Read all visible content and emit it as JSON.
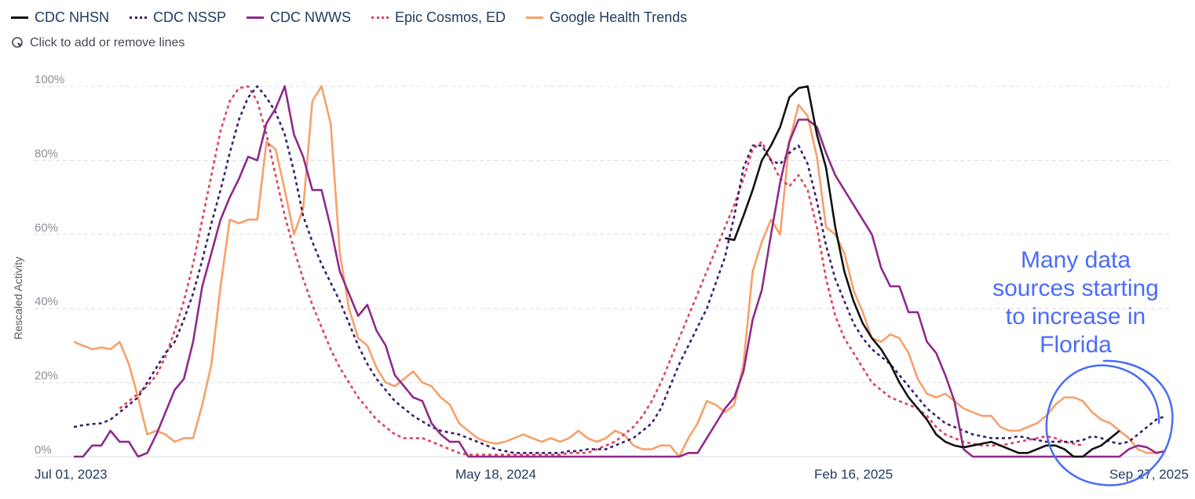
{
  "legend": {
    "items": [
      {
        "label": "CDC NHSN",
        "color": "#111111",
        "dash": "solid"
      },
      {
        "label": "CDC NSSP",
        "color": "#3b1f6b",
        "dash": "dotted"
      },
      {
        "label": "CDC NWWS",
        "color": "#8e2a8b",
        "dash": "solid"
      },
      {
        "label": "Epic Cosmos, ED",
        "color": "#e0405e",
        "dash": "dotted"
      },
      {
        "label": "Google Health Trends",
        "color": "#f7a06a",
        "dash": "solid"
      }
    ],
    "hint": "Click to add or remove lines",
    "hint_icon": "cursor-click-icon"
  },
  "annotation": {
    "lines": [
      "Many data",
      "sources starting",
      "to increase in",
      "Florida"
    ],
    "color": "#4a6cf7"
  },
  "chart_data": {
    "type": "line",
    "ylabel": "Rescaled Activity",
    "ylim": [
      0,
      100
    ],
    "yticks": [
      "0%",
      "20%",
      "40%",
      "60%",
      "80%",
      "100%"
    ],
    "xticks": [
      {
        "label": "Jul 01, 2023",
        "week": 0
      },
      {
        "label": "May 18, 2024",
        "week": 46
      },
      {
        "label": "Feb 16, 2025",
        "week": 85
      },
      {
        "label": "Sep 27, 2025",
        "week": 117
      }
    ],
    "grid": true,
    "x_start": "Jul 01, 2023",
    "x_step": "1 week",
    "series": [
      {
        "name": "CDC NHSN",
        "start": 71,
        "values": [
          59,
          58.5,
          65,
          72,
          80,
          84,
          89,
          97,
          99.5,
          100,
          87,
          78,
          62,
          50,
          42,
          36,
          32,
          29,
          25,
          20,
          16,
          13,
          10,
          6,
          4,
          3,
          2.5,
          3,
          3.5,
          4,
          3,
          2,
          1,
          1,
          2,
          3,
          3,
          2,
          0,
          0,
          2,
          3,
          5,
          7
        ]
      },
      {
        "name": "CDC NSSP",
        "start": 0,
        "values": [
          8,
          8.5,
          8.8,
          9,
          10,
          12,
          14,
          16,
          20,
          24,
          28,
          31,
          37,
          44,
          53,
          63,
          72,
          82,
          91,
          97,
          100,
          97,
          93,
          87,
          77,
          65,
          58,
          52,
          47,
          42,
          36,
          30,
          25,
          21,
          18,
          15,
          13,
          11,
          9.5,
          8,
          7,
          6.5,
          6,
          5,
          4,
          3,
          2,
          1.5,
          1,
          1,
          1,
          1,
          1,
          1,
          1.5,
          1.5,
          2,
          2,
          2,
          3,
          4,
          5,
          7,
          9,
          13,
          19,
          25,
          30,
          35,
          40,
          47,
          54,
          65,
          78,
          84,
          84,
          80,
          79,
          82,
          84,
          79,
          69,
          57,
          48,
          42,
          36,
          32,
          29,
          27,
          25,
          22,
          19,
          16,
          13,
          11,
          9,
          8,
          7,
          6,
          5.5,
          5,
          5,
          5,
          5.5,
          5,
          4.5,
          4,
          4,
          4,
          4,
          4.5,
          5.5,
          5,
          4,
          3.5,
          4,
          6,
          8,
          10,
          11
        ]
      },
      {
        "name": "CDC NWWS",
        "start": 0,
        "values": [
          0,
          0,
          3,
          3,
          7,
          4,
          4,
          0,
          1,
          6,
          12,
          18,
          21,
          31,
          46,
          55,
          64,
          70,
          75,
          81,
          80,
          90,
          94,
          100,
          87,
          81,
          72,
          72,
          62,
          50,
          44,
          38,
          41,
          34,
          30,
          22,
          19,
          16,
          15,
          9,
          6,
          4,
          4,
          0,
          0,
          0,
          0,
          0,
          0,
          0,
          0,
          0,
          0,
          0,
          0,
          0,
          0,
          0,
          0,
          0,
          0,
          0,
          0,
          0,
          0,
          0,
          0,
          1,
          1,
          5,
          9,
          13,
          16,
          23,
          37,
          45,
          60,
          74,
          85,
          91,
          91,
          89,
          82,
          76,
          72,
          68,
          64,
          60,
          51,
          46,
          46,
          39,
          39,
          31,
          28,
          22,
          15,
          2,
          0,
          0,
          0,
          0,
          0,
          0,
          0,
          0,
          0,
          0,
          0,
          0,
          0,
          0,
          0,
          0,
          0,
          2,
          3,
          2.5,
          1,
          1.5
        ]
      },
      {
        "name": "Epic Cosmos, ED",
        "start": 5,
        "values": [
          13,
          15,
          17,
          19,
          22,
          27,
          34,
          42,
          52,
          64,
          76,
          88,
          96,
          99.5,
          100,
          96,
          87,
          76,
          65,
          56,
          48,
          41,
          35,
          29,
          24,
          20,
          16,
          13,
          10,
          8,
          6,
          5,
          5,
          5,
          4,
          3,
          2,
          1,
          0.5,
          0.5,
          0.5,
          0.5,
          0.5,
          0.5,
          0.5,
          0.5,
          0.5,
          0.5,
          0.5,
          1,
          1,
          1,
          2,
          3,
          4,
          6,
          8,
          11,
          15,
          20,
          26,
          32,
          38,
          44,
          50,
          56,
          62,
          68,
          75,
          83,
          85,
          80,
          75,
          73,
          76,
          72,
          62,
          48,
          38,
          32,
          28,
          24,
          20,
          18,
          16,
          15,
          14,
          13,
          11,
          8,
          6,
          5,
          4,
          3.5,
          3,
          3,
          3,
          3.5,
          4,
          4.5,
          5,
          5.5,
          5,
          4,
          3.5,
          3
        ]
      },
      {
        "name": "Google Health Trends",
        "start": 0,
        "values": [
          31,
          30,
          29,
          29.5,
          29,
          31,
          25,
          16,
          6,
          7,
          6,
          4,
          5,
          5,
          14,
          25,
          46,
          64,
          63,
          64,
          64,
          85,
          83,
          72,
          60,
          67,
          96,
          100,
          90,
          55,
          40,
          32,
          30,
          24,
          20,
          19,
          21,
          23,
          20,
          19,
          16,
          14,
          9,
          7,
          5,
          4,
          3.5,
          4,
          5,
          6,
          5,
          4,
          5,
          4,
          5,
          7,
          5,
          4,
          5,
          7,
          6,
          3,
          2,
          2,
          3,
          3,
          0,
          5,
          9,
          15,
          14,
          12,
          14,
          25,
          50,
          58,
          64,
          60,
          85,
          95,
          92,
          81,
          62,
          60,
          55,
          45,
          39,
          32,
          31,
          33,
          32,
          28,
          21,
          17,
          16,
          17,
          15,
          13,
          12,
          11,
          11,
          8,
          7,
          7,
          8,
          9,
          11,
          14,
          16,
          16,
          15,
          12,
          10,
          9,
          7,
          5,
          2,
          1,
          1,
          1.5
        ]
      }
    ]
  }
}
